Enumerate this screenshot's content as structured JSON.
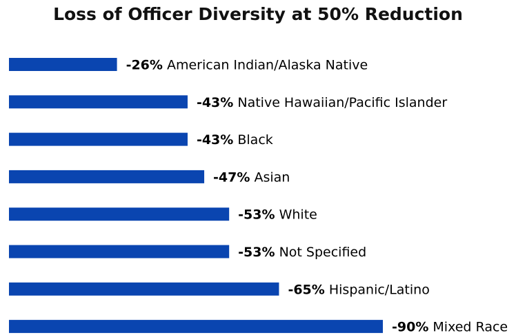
{
  "chart_data": {
    "type": "bar",
    "orientation": "horizontal",
    "title": "Loss of Officer Diversity at 50% Reduction",
    "xlabel": "",
    "ylabel": "",
    "xlim": [
      0,
      90
    ],
    "grid": false,
    "bar_color": "#0a45b0",
    "categories": [
      "American Indian/Alaska Native",
      "Native Hawaiian/Pacific Islander",
      "Black",
      "Asian",
      "White",
      "Not Specified",
      "Hispanic/Latino",
      "Mixed Race"
    ],
    "values": [
      -26,
      -43,
      -43,
      -47,
      -53,
      -53,
      -65,
      -90
    ],
    "value_labels": [
      "-26%",
      "-43%",
      "-43%",
      "-47%",
      "-53%",
      "-53%",
      "-65%",
      "-90%"
    ]
  }
}
